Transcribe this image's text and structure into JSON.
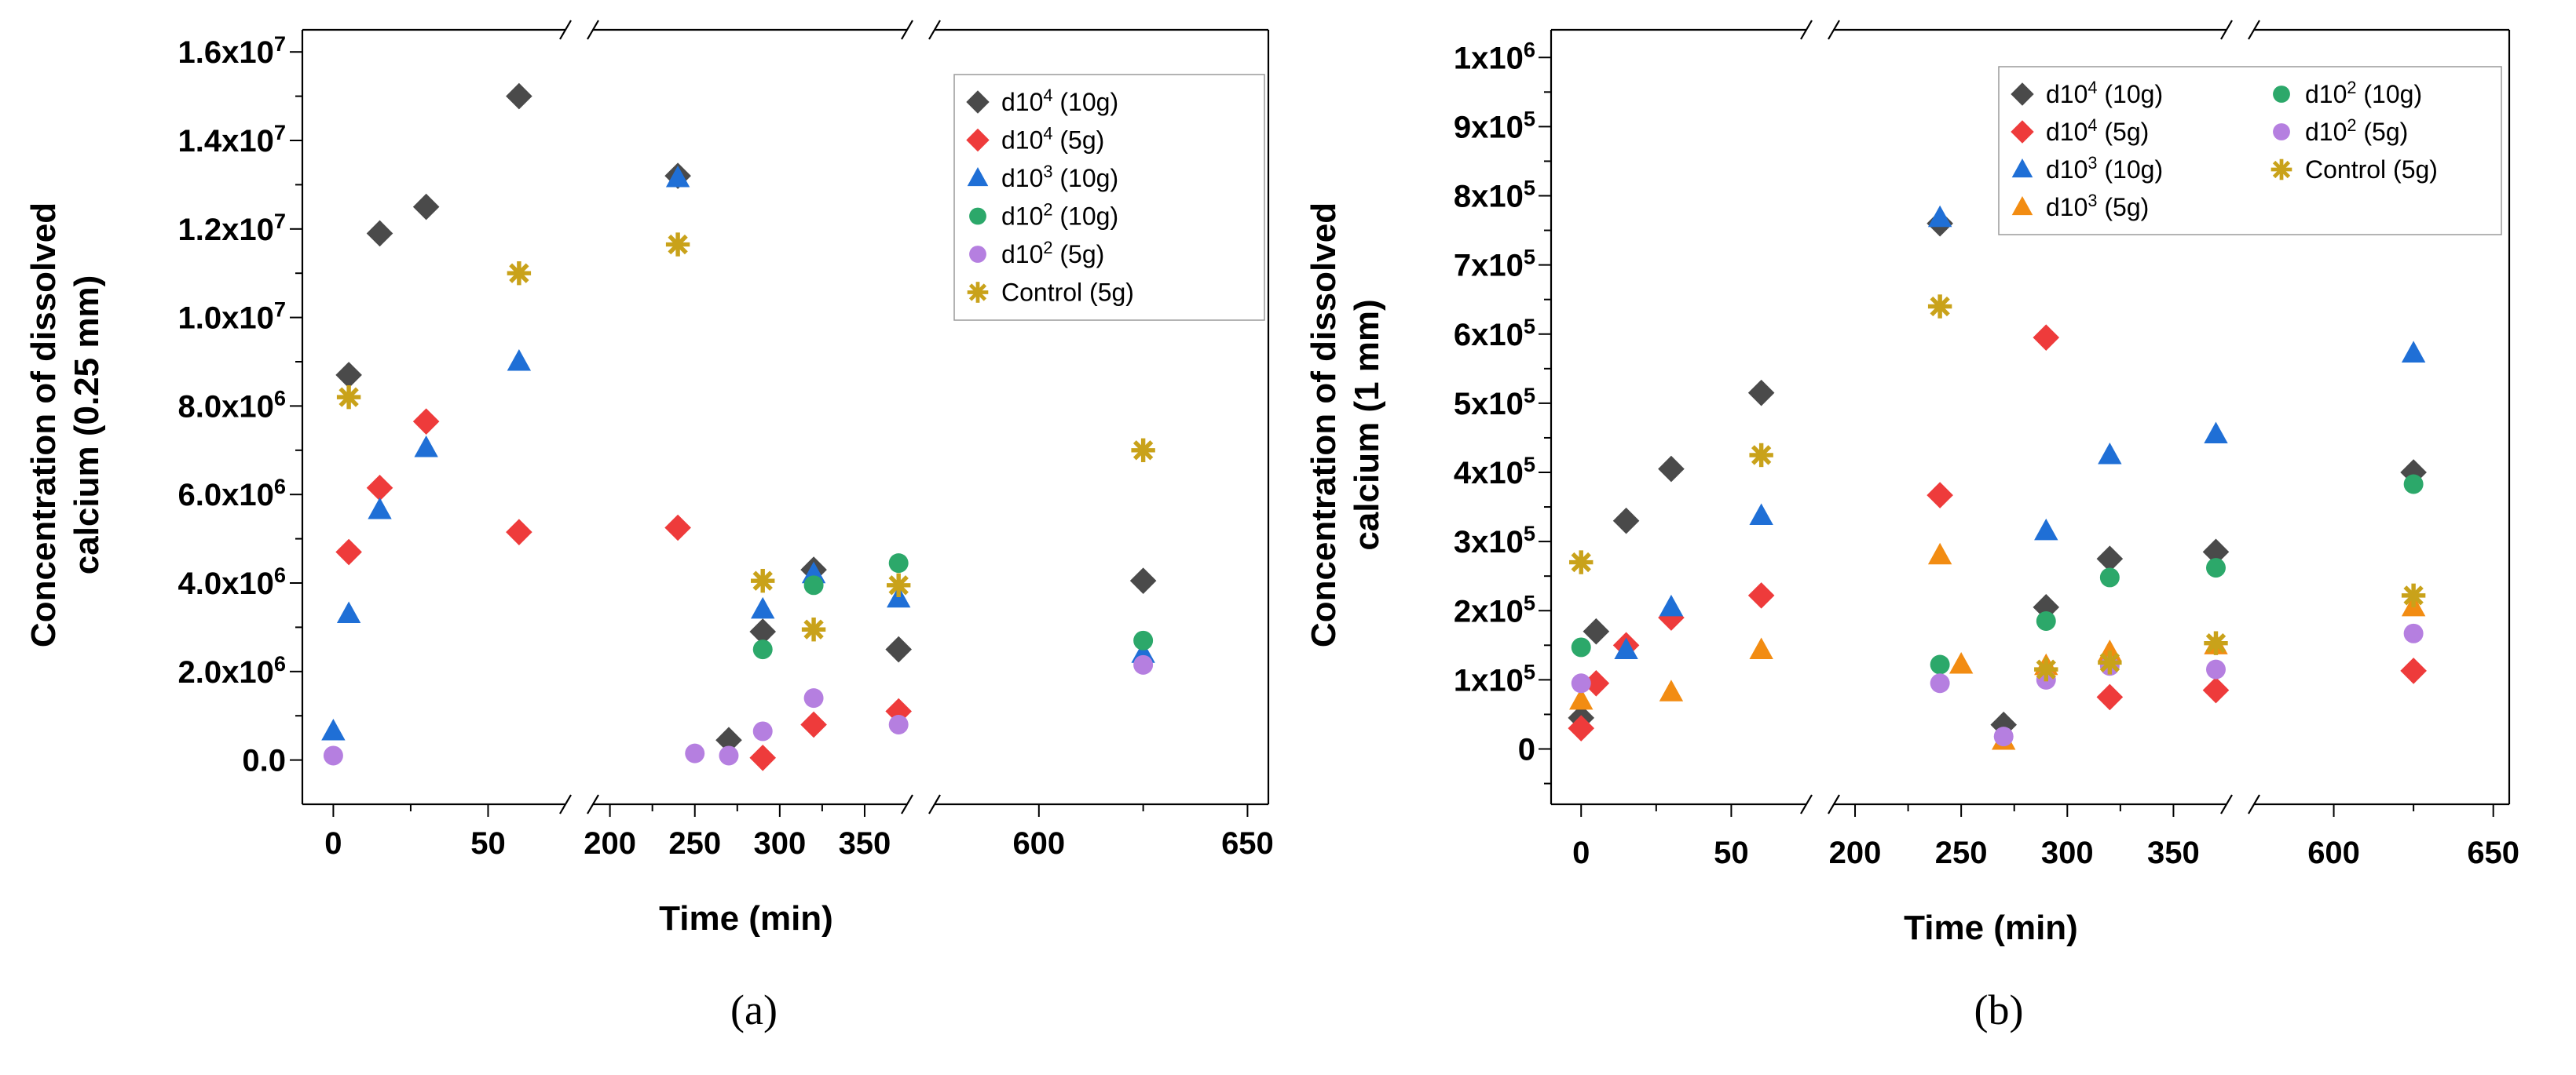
{
  "chart_data": [
    {
      "type": "scatter",
      "panel_label": "(a)",
      "title": "",
      "xlabel": "Time (min)",
      "ylabel_lines": [
        "Concentration of dissolved",
        "calcium (0.25 mm)"
      ],
      "ylim": [
        -1000000,
        16500000
      ],
      "y_ticks": [
        {
          "value": 0,
          "label": "0.0",
          "exp": ""
        },
        {
          "value": 2000000,
          "label": "2.0x10",
          "exp": "6"
        },
        {
          "value": 4000000,
          "label": "4.0x10",
          "exp": "6"
        },
        {
          "value": 6000000,
          "label": "6.0x10",
          "exp": "6"
        },
        {
          "value": 8000000,
          "label": "8.0x10",
          "exp": "6"
        },
        {
          "value": 10000000,
          "label": "1.0x10",
          "exp": "7"
        },
        {
          "value": 12000000,
          "label": "1.2x10",
          "exp": "7"
        },
        {
          "value": 14000000,
          "label": "1.4x10",
          "exp": "7"
        },
        {
          "value": 16000000,
          "label": "1.6x10",
          "exp": "7"
        }
      ],
      "x_segments": [
        [
          -10,
          75
        ],
        [
          190,
          375
        ],
        [
          575,
          655
        ]
      ],
      "x_tick_labels": [
        0,
        50,
        200,
        250,
        300,
        350,
        600,
        650
      ],
      "legend": {
        "position": "top-right",
        "columns": 1
      },
      "grid": false,
      "series": [
        {
          "name": "d10",
          "sup": "4",
          "suffix": " (10g)",
          "marker": "diamond",
          "color": "#4a4a4a",
          "points": [
            [
              5,
              8700000
            ],
            [
              15,
              11900000
            ],
            [
              30,
              12500000
            ],
            [
              60,
              15000000
            ],
            [
              240,
              13200000
            ],
            [
              270,
              450000
            ],
            [
              290,
              2900000
            ],
            [
              320,
              4300000
            ],
            [
              370,
              2500000
            ],
            [
              625,
              4050000
            ]
          ]
        },
        {
          "name": "d10",
          "sup": "4",
          "suffix": " (5g)",
          "marker": "diamond",
          "color": "#ee3b3b",
          "points": [
            [
              5,
              4700000
            ],
            [
              15,
              6150000
            ],
            [
              30,
              7650000
            ],
            [
              60,
              5150000
            ],
            [
              240,
              5250000
            ],
            [
              290,
              50000
            ],
            [
              320,
              800000
            ],
            [
              370,
              1100000
            ]
          ]
        },
        {
          "name": "d10",
          "sup": "3",
          "suffix": " (10g)",
          "marker": "triangle",
          "color": "#1f6fd6",
          "points": [
            [
              0,
              650000
            ],
            [
              5,
              3300000
            ],
            [
              15,
              5650000
            ],
            [
              30,
              7050000
            ],
            [
              60,
              9000000
            ],
            [
              240,
              13150000
            ],
            [
              290,
              3400000
            ],
            [
              320,
              4200000
            ],
            [
              370,
              3650000
            ],
            [
              625,
              2400000
            ]
          ]
        },
        {
          "name": "d10",
          "sup": "2",
          "suffix": " (10g)",
          "marker": "circle",
          "color": "#2ca86a",
          "points": [
            [
              290,
              2500000
            ],
            [
              320,
              3950000
            ],
            [
              370,
              4450000
            ],
            [
              625,
              2700000
            ]
          ]
        },
        {
          "name": "d10",
          "sup": "2",
          "suffix": " (5g)",
          "marker": "circle",
          "color": "#b57fe0",
          "points": [
            [
              0,
              100000
            ],
            [
              250,
              150000
            ],
            [
              270,
              100000
            ],
            [
              290,
              650000
            ],
            [
              320,
              1400000
            ],
            [
              370,
              800000
            ],
            [
              625,
              2150000
            ]
          ]
        },
        {
          "name": "Control",
          "sup": "",
          "suffix": " (5g)",
          "marker": "asterisk",
          "color": "#c9a21a",
          "points": [
            [
              5,
              8200000
            ],
            [
              60,
              11000000
            ],
            [
              240,
              11650000
            ],
            [
              290,
              4050000
            ],
            [
              320,
              2950000
            ],
            [
              370,
              3950000
            ],
            [
              625,
              7000000
            ]
          ]
        }
      ]
    },
    {
      "type": "scatter",
      "panel_label": "(b)",
      "title": "",
      "xlabel": "Time (min)",
      "ylabel_lines": [
        "Concentration of dissolved",
        "calcium (1 mm)"
      ],
      "ylim": [
        -80000,
        1040000
      ],
      "y_ticks": [
        {
          "value": 0,
          "label": "0",
          "exp": ""
        },
        {
          "value": 100000,
          "label": "1x10",
          "exp": "5"
        },
        {
          "value": 200000,
          "label": "2x10",
          "exp": "5"
        },
        {
          "value": 300000,
          "label": "3x10",
          "exp": "5"
        },
        {
          "value": 400000,
          "label": "4x10",
          "exp": "5"
        },
        {
          "value": 500000,
          "label": "5x10",
          "exp": "5"
        },
        {
          "value": 600000,
          "label": "6x10",
          "exp": "5"
        },
        {
          "value": 700000,
          "label": "7x10",
          "exp": "5"
        },
        {
          "value": 800000,
          "label": "8x10",
          "exp": "5"
        },
        {
          "value": 900000,
          "label": "9x10",
          "exp": "5"
        },
        {
          "value": 1000000,
          "label": "1x10",
          "exp": "6"
        }
      ],
      "x_segments": [
        [
          -10,
          75
        ],
        [
          190,
          375
        ],
        [
          575,
          655
        ]
      ],
      "x_tick_labels": [
        0,
        50,
        200,
        250,
        300,
        350,
        600,
        650
      ],
      "legend": {
        "position": "top-right",
        "columns": 2
      },
      "grid": false,
      "series": [
        {
          "name": "d10",
          "sup": "4",
          "suffix": " (10g)",
          "marker": "diamond",
          "color": "#4a4a4a",
          "points": [
            [
              0,
              45000
            ],
            [
              5,
              170000
            ],
            [
              15,
              330000
            ],
            [
              30,
              405000
            ],
            [
              60,
              515000
            ],
            [
              240,
              760000
            ],
            [
              270,
              35000
            ],
            [
              290,
              205000
            ],
            [
              320,
              275000
            ],
            [
              370,
              285000
            ],
            [
              625,
              400000
            ]
          ]
        },
        {
          "name": "d10",
          "sup": "4",
          "suffix": " (5g)",
          "marker": "diamond",
          "color": "#ee3b3b",
          "points": [
            [
              0,
              30000
            ],
            [
              5,
              95000
            ],
            [
              15,
              150000
            ],
            [
              30,
              190000
            ],
            [
              60,
              222000
            ],
            [
              240,
              367000
            ],
            [
              290,
              595000
            ],
            [
              320,
              75000
            ],
            [
              370,
              85000
            ],
            [
              625,
              113000
            ]
          ]
        },
        {
          "name": "d10",
          "sup": "3",
          "suffix": " (10g)",
          "marker": "triangle",
          "color": "#1f6fd6",
          "points": [
            [
              15,
              143000
            ],
            [
              30,
              205000
            ],
            [
              60,
              337000
            ],
            [
              240,
              768000
            ],
            [
              290,
              315000
            ],
            [
              320,
              425000
            ],
            [
              370,
              455000
            ],
            [
              625,
              572000
            ]
          ]
        },
        {
          "name": "d10",
          "sup": "3",
          "suffix": " (5g)",
          "marker": "triangle",
          "color": "#f28c12",
          "points": [
            [
              0,
              70000
            ],
            [
              30,
              82000
            ],
            [
              60,
              143000
            ],
            [
              240,
              280000
            ],
            [
              250,
              122000
            ],
            [
              270,
              12000
            ],
            [
              290,
              120000
            ],
            [
              320,
              140000
            ],
            [
              370,
              150000
            ],
            [
              625,
              205000
            ]
          ]
        },
        {
          "name": "d10",
          "sup": "2",
          "suffix": " (10g)",
          "marker": "circle",
          "color": "#2ca86a",
          "points": [
            [
              0,
              147000
            ],
            [
              240,
              122000
            ],
            [
              290,
              185000
            ],
            [
              320,
              248000
            ],
            [
              370,
              262000
            ],
            [
              625,
              383000
            ]
          ]
        },
        {
          "name": "d10",
          "sup": "2",
          "suffix": " (5g)",
          "marker": "circle",
          "color": "#b57fe0",
          "points": [
            [
              0,
              95000
            ],
            [
              240,
              95000
            ],
            [
              270,
              18000
            ],
            [
              290,
              100000
            ],
            [
              320,
              120000
            ],
            [
              370,
              115000
            ],
            [
              625,
              167000
            ]
          ]
        },
        {
          "name": "Control",
          "sup": "",
          "suffix": " (5g)",
          "marker": "asterisk",
          "color": "#c9a21a",
          "points": [
            [
              0,
              270000
            ],
            [
              60,
              425000
            ],
            [
              240,
              640000
            ],
            [
              290,
              115000
            ],
            [
              320,
              125000
            ],
            [
              370,
              153000
            ],
            [
              625,
              222000
            ]
          ]
        }
      ]
    }
  ]
}
